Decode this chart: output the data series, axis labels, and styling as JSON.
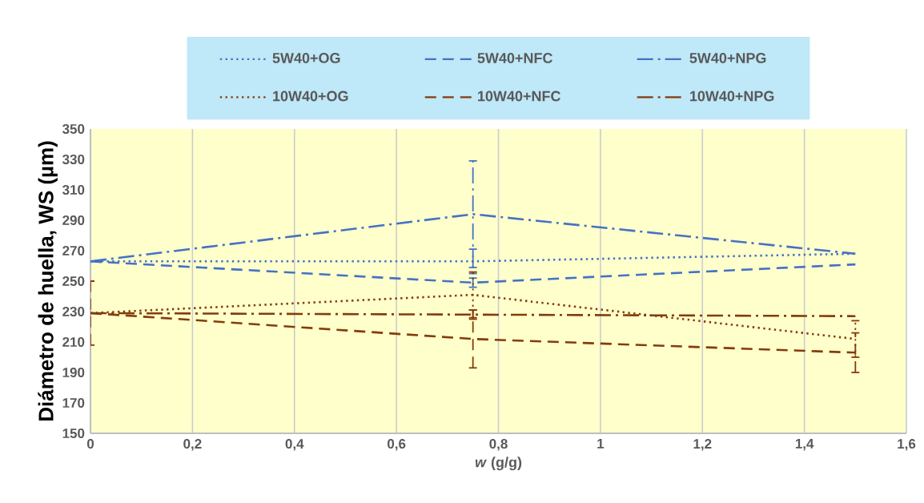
{
  "chart_data": {
    "type": "line",
    "xlabel": "*w* (g/g)",
    "ylabel": "Diámetro de huella, WS (µm)",
    "x": [
      0,
      0.75,
      1.5
    ],
    "series": [
      {
        "name": "5W40+OG",
        "color": "#4472c4",
        "line_style": "dotted",
        "values": [
          263,
          263,
          268
        ],
        "errors": [
          null,
          8,
          null
        ]
      },
      {
        "name": "5W40+NFC",
        "color": "#4472c4",
        "line_style": "dashed",
        "values": [
          263,
          249,
          261
        ],
        "errors": [
          null,
          3,
          null
        ]
      },
      {
        "name": "5W40+NPG",
        "color": "#4472c4",
        "line_style": "dashdot",
        "values": [
          263,
          294,
          268
        ],
        "errors": [
          null,
          35,
          null
        ]
      },
      {
        "name": "10W40+OG",
        "color": "#843c0c",
        "line_style": "dotted",
        "values": [
          229,
          241,
          212
        ],
        "errors": [
          null,
          15,
          12
        ]
      },
      {
        "name": "10W40+NFC",
        "color": "#843c0c",
        "line_style": "dashed",
        "values": [
          229,
          212,
          203
        ],
        "errors": [
          21,
          19,
          13
        ]
      },
      {
        "name": "10W40+NPG",
        "color": "#843c0c",
        "line_style": "dashdot",
        "values": [
          229,
          228,
          227
        ],
        "errors": [
          null,
          3,
          null
        ]
      }
    ],
    "xlim": [
      0,
      1.6
    ],
    "xticks": [
      0,
      {
        "value": 0.2,
        "label": "0,2"
      },
      {
        "value": 0.4,
        "label": "0,4"
      },
      {
        "value": 0.6,
        "label": "0,6"
      },
      {
        "value": 0.8,
        "label": "0,8"
      },
      1,
      {
        "value": 1.2,
        "label": "1,2"
      },
      {
        "value": 1.4,
        "label": "1,4"
      },
      {
        "value": 1.6,
        "label": "1,6"
      }
    ],
    "ylim": [
      150,
      350
    ],
    "yticks": [
      150,
      170,
      190,
      210,
      230,
      250,
      270,
      290,
      310,
      330,
      350
    ],
    "grid": "x",
    "legend": "top"
  }
}
